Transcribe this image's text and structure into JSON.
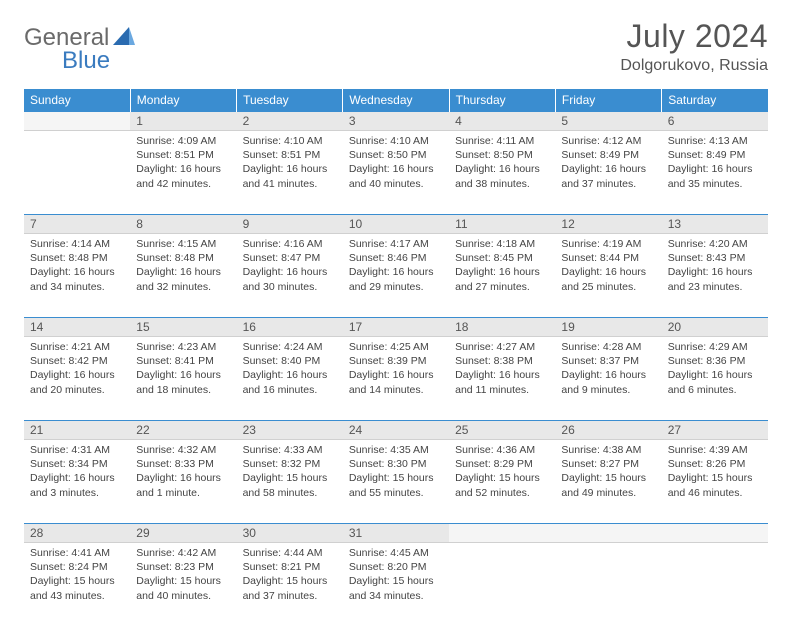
{
  "logo": {
    "text1": "General",
    "text2": "Blue"
  },
  "title": "July 2024",
  "location": "Dolgorukovo, Russia",
  "colors": {
    "header_bg": "#3a8dd0",
    "header_text": "#ffffff",
    "daybar_bg": "#e8e8e8",
    "border_blue": "#3a8dd0",
    "text": "#444444"
  },
  "weekdays": [
    "Sunday",
    "Monday",
    "Tuesday",
    "Wednesday",
    "Thursday",
    "Friday",
    "Saturday"
  ],
  "weeks": [
    [
      null,
      {
        "n": "1",
        "sr": "4:09 AM",
        "ss": "8:51 PM",
        "dl": "16 hours and 42 minutes."
      },
      {
        "n": "2",
        "sr": "4:10 AM",
        "ss": "8:51 PM",
        "dl": "16 hours and 41 minutes."
      },
      {
        "n": "3",
        "sr": "4:10 AM",
        "ss": "8:50 PM",
        "dl": "16 hours and 40 minutes."
      },
      {
        "n": "4",
        "sr": "4:11 AM",
        "ss": "8:50 PM",
        "dl": "16 hours and 38 minutes."
      },
      {
        "n": "5",
        "sr": "4:12 AM",
        "ss": "8:49 PM",
        "dl": "16 hours and 37 minutes."
      },
      {
        "n": "6",
        "sr": "4:13 AM",
        "ss": "8:49 PM",
        "dl": "16 hours and 35 minutes."
      }
    ],
    [
      {
        "n": "7",
        "sr": "4:14 AM",
        "ss": "8:48 PM",
        "dl": "16 hours and 34 minutes."
      },
      {
        "n": "8",
        "sr": "4:15 AM",
        "ss": "8:48 PM",
        "dl": "16 hours and 32 minutes."
      },
      {
        "n": "9",
        "sr": "4:16 AM",
        "ss": "8:47 PM",
        "dl": "16 hours and 30 minutes."
      },
      {
        "n": "10",
        "sr": "4:17 AM",
        "ss": "8:46 PM",
        "dl": "16 hours and 29 minutes."
      },
      {
        "n": "11",
        "sr": "4:18 AM",
        "ss": "8:45 PM",
        "dl": "16 hours and 27 minutes."
      },
      {
        "n": "12",
        "sr": "4:19 AM",
        "ss": "8:44 PM",
        "dl": "16 hours and 25 minutes."
      },
      {
        "n": "13",
        "sr": "4:20 AM",
        "ss": "8:43 PM",
        "dl": "16 hours and 23 minutes."
      }
    ],
    [
      {
        "n": "14",
        "sr": "4:21 AM",
        "ss": "8:42 PM",
        "dl": "16 hours and 20 minutes."
      },
      {
        "n": "15",
        "sr": "4:23 AM",
        "ss": "8:41 PM",
        "dl": "16 hours and 18 minutes."
      },
      {
        "n": "16",
        "sr": "4:24 AM",
        "ss": "8:40 PM",
        "dl": "16 hours and 16 minutes."
      },
      {
        "n": "17",
        "sr": "4:25 AM",
        "ss": "8:39 PM",
        "dl": "16 hours and 14 minutes."
      },
      {
        "n": "18",
        "sr": "4:27 AM",
        "ss": "8:38 PM",
        "dl": "16 hours and 11 minutes."
      },
      {
        "n": "19",
        "sr": "4:28 AM",
        "ss": "8:37 PM",
        "dl": "16 hours and 9 minutes."
      },
      {
        "n": "20",
        "sr": "4:29 AM",
        "ss": "8:36 PM",
        "dl": "16 hours and 6 minutes."
      }
    ],
    [
      {
        "n": "21",
        "sr": "4:31 AM",
        "ss": "8:34 PM",
        "dl": "16 hours and 3 minutes."
      },
      {
        "n": "22",
        "sr": "4:32 AM",
        "ss": "8:33 PM",
        "dl": "16 hours and 1 minute."
      },
      {
        "n": "23",
        "sr": "4:33 AM",
        "ss": "8:32 PM",
        "dl": "15 hours and 58 minutes."
      },
      {
        "n": "24",
        "sr": "4:35 AM",
        "ss": "8:30 PM",
        "dl": "15 hours and 55 minutes."
      },
      {
        "n": "25",
        "sr": "4:36 AM",
        "ss": "8:29 PM",
        "dl": "15 hours and 52 minutes."
      },
      {
        "n": "26",
        "sr": "4:38 AM",
        "ss": "8:27 PM",
        "dl": "15 hours and 49 minutes."
      },
      {
        "n": "27",
        "sr": "4:39 AM",
        "ss": "8:26 PM",
        "dl": "15 hours and 46 minutes."
      }
    ],
    [
      {
        "n": "28",
        "sr": "4:41 AM",
        "ss": "8:24 PM",
        "dl": "15 hours and 43 minutes."
      },
      {
        "n": "29",
        "sr": "4:42 AM",
        "ss": "8:23 PM",
        "dl": "15 hours and 40 minutes."
      },
      {
        "n": "30",
        "sr": "4:44 AM",
        "ss": "8:21 PM",
        "dl": "15 hours and 37 minutes."
      },
      {
        "n": "31",
        "sr": "4:45 AM",
        "ss": "8:20 PM",
        "dl": "15 hours and 34 minutes."
      },
      null,
      null,
      null
    ]
  ],
  "labels": {
    "sunrise": "Sunrise:",
    "sunset": "Sunset:",
    "daylight": "Daylight:"
  }
}
